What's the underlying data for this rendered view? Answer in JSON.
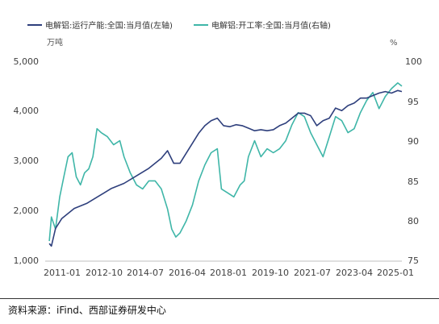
{
  "chart_data": {
    "type": "line",
    "title": "",
    "left_axis_unit": "万吨",
    "right_axis_unit": "%",
    "x_tick_labels": [
      "2011-01",
      "2012-10",
      "2014-07",
      "2016-04",
      "2018-01",
      "2019-10",
      "2021-07",
      "2023-04",
      "2025-01"
    ],
    "left_ylim": [
      1000,
      5000
    ],
    "left_yticks": [
      "1,000",
      "2,000",
      "3,000",
      "4,000",
      "5,000"
    ],
    "right_ylim": [
      75,
      100
    ],
    "right_yticks": [
      "75",
      "80",
      "85",
      "90",
      "95",
      "100"
    ],
    "legend_position": "top-left",
    "grid": false,
    "series": [
      {
        "name": "电解铝:运行产能:全国:当月值(左轴)",
        "axis": "left",
        "color": "#2e3f7c",
        "points": [
          [
            "2010-12",
            1350
          ],
          [
            "2011-01",
            1300
          ],
          [
            "2011-03",
            1650
          ],
          [
            "2011-06",
            1850
          ],
          [
            "2011-09",
            1950
          ],
          [
            "2011-12",
            2050
          ],
          [
            "2012-06",
            2150
          ],
          [
            "2012-12",
            2300
          ],
          [
            "2013-06",
            2450
          ],
          [
            "2013-12",
            2550
          ],
          [
            "2014-06",
            2700
          ],
          [
            "2014-12",
            2850
          ],
          [
            "2015-06",
            3050
          ],
          [
            "2015-09",
            3200
          ],
          [
            "2015-12",
            2950
          ],
          [
            "2016-03",
            2950
          ],
          [
            "2016-06",
            3150
          ],
          [
            "2016-09",
            3350
          ],
          [
            "2016-12",
            3550
          ],
          [
            "2017-03",
            3700
          ],
          [
            "2017-06",
            3800
          ],
          [
            "2017-09",
            3850
          ],
          [
            "2017-12",
            3700
          ],
          [
            "2018-03",
            3680
          ],
          [
            "2018-06",
            3720
          ],
          [
            "2018-09",
            3700
          ],
          [
            "2018-12",
            3650
          ],
          [
            "2019-03",
            3600
          ],
          [
            "2019-06",
            3620
          ],
          [
            "2019-09",
            3600
          ],
          [
            "2019-12",
            3620
          ],
          [
            "2020-03",
            3700
          ],
          [
            "2020-06",
            3750
          ],
          [
            "2020-09",
            3850
          ],
          [
            "2020-12",
            3950
          ],
          [
            "2021-03",
            3950
          ],
          [
            "2021-06",
            3900
          ],
          [
            "2021-09",
            3700
          ],
          [
            "2021-12",
            3800
          ],
          [
            "2022-03",
            3850
          ],
          [
            "2022-06",
            4050
          ],
          [
            "2022-09",
            4000
          ],
          [
            "2022-12",
            4100
          ],
          [
            "2023-03",
            4150
          ],
          [
            "2023-06",
            4250
          ],
          [
            "2023-09",
            4250
          ],
          [
            "2023-12",
            4300
          ],
          [
            "2024-03",
            4350
          ],
          [
            "2024-06",
            4380
          ],
          [
            "2024-09",
            4350
          ],
          [
            "2024-12",
            4400
          ],
          [
            "2025-02",
            4380
          ]
        ]
      },
      {
        "name": "电解铝:开工率:全国:当月值(右轴)",
        "axis": "right",
        "color": "#3fb6a8",
        "points": [
          [
            "2010-12",
            77.5
          ],
          [
            "2011-01",
            80.5
          ],
          [
            "2011-03",
            79
          ],
          [
            "2011-05",
            83
          ],
          [
            "2011-07",
            85.5
          ],
          [
            "2011-09",
            88
          ],
          [
            "2011-11",
            88.5
          ],
          [
            "2012-01",
            85.5
          ],
          [
            "2012-03",
            84.5
          ],
          [
            "2012-05",
            86
          ],
          [
            "2012-07",
            86.5
          ],
          [
            "2012-09",
            88
          ],
          [
            "2012-11",
            91.5
          ],
          [
            "2013-01",
            91
          ],
          [
            "2013-04",
            90.5
          ],
          [
            "2013-07",
            89.5
          ],
          [
            "2013-10",
            90
          ],
          [
            "2013-12",
            88
          ],
          [
            "2014-03",
            86
          ],
          [
            "2014-06",
            84.5
          ],
          [
            "2014-09",
            84
          ],
          [
            "2014-12",
            85
          ],
          [
            "2015-03",
            85
          ],
          [
            "2015-06",
            84
          ],
          [
            "2015-09",
            81.5
          ],
          [
            "2015-11",
            79
          ],
          [
            "2016-01",
            78
          ],
          [
            "2016-03",
            78.5
          ],
          [
            "2016-06",
            80
          ],
          [
            "2016-09",
            82
          ],
          [
            "2016-12",
            85
          ],
          [
            "2017-03",
            87
          ],
          [
            "2017-06",
            88.5
          ],
          [
            "2017-09",
            89
          ],
          [
            "2017-11",
            84
          ],
          [
            "2018-02",
            83.5
          ],
          [
            "2018-05",
            83
          ],
          [
            "2018-08",
            84.5
          ],
          [
            "2018-10",
            85
          ],
          [
            "2018-12",
            88
          ],
          [
            "2019-03",
            90
          ],
          [
            "2019-06",
            88
          ],
          [
            "2019-09",
            89
          ],
          [
            "2019-12",
            88.5
          ],
          [
            "2020-03",
            89
          ],
          [
            "2020-06",
            90
          ],
          [
            "2020-09",
            92
          ],
          [
            "2020-12",
            93.5
          ],
          [
            "2021-03",
            93
          ],
          [
            "2021-06",
            91
          ],
          [
            "2021-09",
            89.5
          ],
          [
            "2021-12",
            88
          ],
          [
            "2022-03",
            90.5
          ],
          [
            "2022-06",
            93
          ],
          [
            "2022-09",
            92.5
          ],
          [
            "2022-12",
            91
          ],
          [
            "2023-03",
            91.5
          ],
          [
            "2023-06",
            93.5
          ],
          [
            "2023-09",
            95
          ],
          [
            "2023-12",
            96
          ],
          [
            "2024-03",
            94
          ],
          [
            "2024-06",
            95.5
          ],
          [
            "2024-09",
            96.5
          ],
          [
            "2024-12",
            97.2
          ],
          [
            "2025-02",
            96.8
          ]
        ]
      }
    ]
  },
  "footer": {
    "source_text": "资料来源：iFind、西部证券研发中心"
  }
}
